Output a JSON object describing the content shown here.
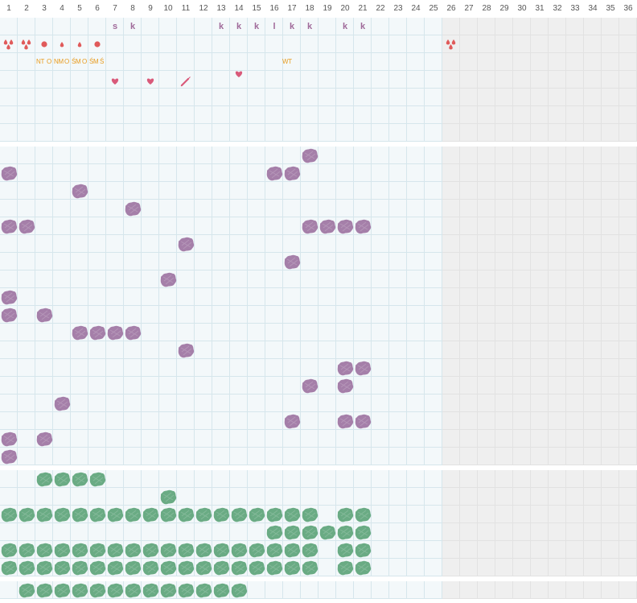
{
  "colors": {
    "grid_line": "#d6e6ec",
    "active_cell": "#f3f8fa",
    "inactive_cell": "#efefef",
    "letter": "#a06a9a",
    "note_text": "#e79b1e",
    "blood": "#e05a5a",
    "heart": "#d95a7a",
    "purple_blob": "#a57fa9",
    "green_blob": "#6aab84"
  },
  "days": [
    "1",
    "2",
    "3",
    "4",
    "5",
    "6",
    "7",
    "8",
    "9",
    "10",
    "11",
    "12",
    "13",
    "14",
    "15",
    "16",
    "17",
    "18",
    "19",
    "20",
    "21",
    "22",
    "23",
    "24",
    "25",
    "26",
    "27",
    "28",
    "29",
    "30",
    "31",
    "32",
    "33",
    "34",
    "35",
    "36"
  ],
  "active_days": 25,
  "letters": [
    {
      "col": 7,
      "text": "s"
    },
    {
      "col": 8,
      "text": "k"
    },
    {
      "col": 13,
      "text": "k"
    },
    {
      "col": 14,
      "text": "k"
    },
    {
      "col": 15,
      "text": "k"
    },
    {
      "col": 16,
      "text": "l"
    },
    {
      "col": 17,
      "text": "k"
    },
    {
      "col": 18,
      "text": "k"
    },
    {
      "col": 20,
      "text": "k"
    },
    {
      "col": 21,
      "text": "k"
    }
  ],
  "bleeding": [
    {
      "col": 1,
      "icon": "blood-drops-heavy-icon"
    },
    {
      "col": 2,
      "icon": "blood-drops-heavy-icon"
    },
    {
      "col": 3,
      "icon": "blood-dot-icon"
    },
    {
      "col": 4,
      "icon": "blood-drop-icon"
    },
    {
      "col": 5,
      "icon": "blood-drop-icon"
    },
    {
      "col": 6,
      "icon": "blood-dot-icon"
    },
    {
      "col": 26,
      "icon": "blood-drops-heavy-icon"
    }
  ],
  "notes": [
    {
      "col": 3,
      "text": "NT"
    },
    {
      "col": 4,
      "text": "O"
    },
    {
      "col": 4,
      "text": "NM"
    },
    {
      "col": 5,
      "text": "O"
    },
    {
      "col": 5,
      "text": "ŚM"
    },
    {
      "col": 6,
      "text": "O"
    },
    {
      "col": 6,
      "text": "ŚM"
    },
    {
      "col": 7,
      "text": "Ś"
    },
    {
      "col": 17,
      "text": "WT"
    }
  ],
  "events": [
    {
      "col": 7,
      "icon": "heart-icon"
    },
    {
      "col": 9,
      "icon": "heart-icon"
    },
    {
      "col": 11,
      "icon": "syringe-icon"
    },
    {
      "col": 14,
      "icon": "heart-icon"
    }
  ],
  "purple_rows": [
    [
      18
    ],
    [
      1,
      16,
      17
    ],
    [
      5
    ],
    [
      8
    ],
    [
      1,
      2,
      18,
      19,
      20,
      21
    ],
    [
      11
    ],
    [
      17
    ],
    [
      10
    ],
    [
      1
    ],
    [
      1,
      3
    ],
    [
      5,
      6,
      7,
      8
    ],
    [
      11
    ],
    [
      20,
      21
    ],
    [
      18,
      20
    ],
    [
      4
    ],
    [
      17,
      20,
      21
    ],
    [
      1,
      3
    ],
    [
      1
    ]
  ],
  "green_rows": [
    [
      3,
      4,
      5,
      6
    ],
    [
      10
    ],
    [
      1,
      2,
      3,
      4,
      5,
      6,
      7,
      8,
      9,
      10,
      11,
      12,
      13,
      14,
      15,
      16,
      17,
      18,
      20,
      21
    ],
    [
      16,
      17,
      18,
      19,
      20,
      21
    ],
    [
      1,
      2,
      3,
      4,
      5,
      6,
      7,
      8,
      9,
      10,
      11,
      12,
      13,
      14,
      15,
      16,
      17,
      18,
      20,
      21
    ],
    [
      1,
      2,
      3,
      4,
      5,
      6,
      7,
      8,
      9,
      10,
      11,
      12,
      13,
      14,
      15,
      16,
      17,
      18,
      20,
      21
    ]
  ],
  "green_bottom": [
    2,
    3,
    4,
    5,
    6,
    7,
    8,
    9,
    10,
    11,
    12,
    13,
    14
  ]
}
